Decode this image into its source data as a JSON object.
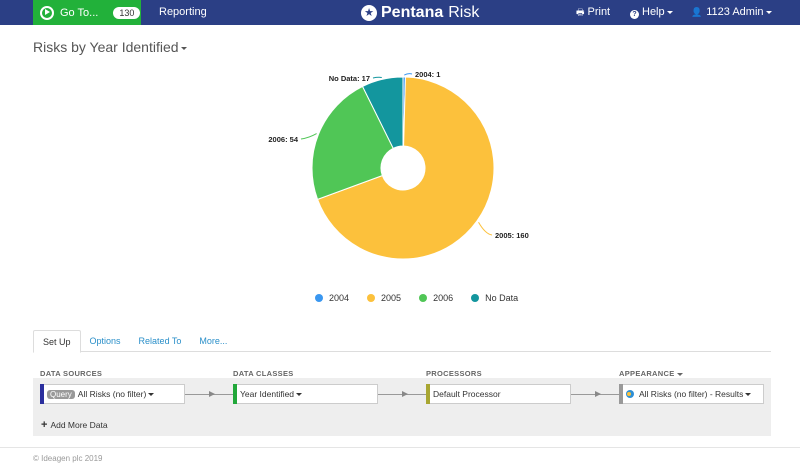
{
  "topbar": {
    "goto_label": "Go To...",
    "goto_count": "130",
    "reporting_label": "Reporting",
    "brand": "Pentana",
    "product": "Risk",
    "print_label": "Print",
    "help_label": "Help",
    "user_label": "1123 Admin",
    "colors": {
      "bar": "#2b3f85",
      "goto": "#22b13a"
    }
  },
  "page": {
    "title": "Risks by Year Identified"
  },
  "chart_data": {
    "type": "pie",
    "title": "Risks by Year Identified",
    "donut": true,
    "categories": [
      "2004",
      "2005",
      "2006",
      "No Data"
    ],
    "values": [
      1,
      160,
      54,
      17
    ],
    "colors": [
      "#3a97f0",
      "#fcc13c",
      "#50c656",
      "#13969e"
    ],
    "data_labels": [
      "2004: 1",
      "2005: 160",
      "2006: 54",
      "No Data: 17"
    ],
    "legend_position": "bottom"
  },
  "legend": [
    {
      "label": "2004",
      "color": "#3a97f0"
    },
    {
      "label": "2005",
      "color": "#fcc13c"
    },
    {
      "label": "2006",
      "color": "#50c656"
    },
    {
      "label": "No Data",
      "color": "#13969e"
    }
  ],
  "tabs": [
    {
      "label": "Set Up",
      "active": true
    },
    {
      "label": "Options"
    },
    {
      "label": "Related To"
    },
    {
      "label": "More..."
    }
  ],
  "pipeline": {
    "headers": {
      "sources": "DATA SOURCES",
      "classes": "DATA CLASSES",
      "processors": "PROCESSORS",
      "appearance": "APPEARANCE"
    },
    "source": {
      "badge": "Query",
      "label": "All Risks (no filter)",
      "color": "#2b2f9e"
    },
    "data_class": {
      "label": "Year Identified",
      "color": "#22a83a"
    },
    "processor": {
      "label": "Default Processor",
      "color": "#a8a632"
    },
    "appearance": {
      "label": "All Risks (no filter) - Results",
      "color": "#999999"
    },
    "add_more": "Add More Data"
  },
  "footer": {
    "copyright": "© Ideagen plc 2019"
  }
}
